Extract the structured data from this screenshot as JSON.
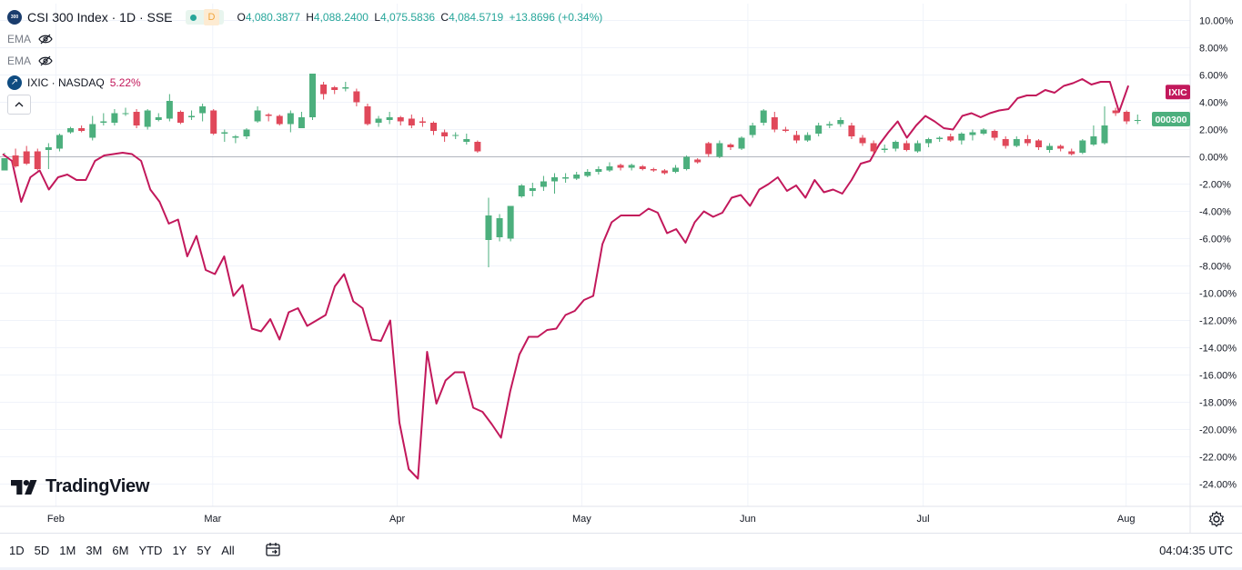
{
  "header": {
    "symbol_logo_text": "300",
    "title": "CSI 300 Index · 1D · SSE",
    "market_badge": "D",
    "ohlc": {
      "o_label": "O",
      "o": "4,080.3877",
      "h_label": "H",
      "h": "4,088.2400",
      "l_label": "L",
      "l": "4,075.5836",
      "c_label": "C",
      "c": "4,084.5719",
      "change": "+13.8696 (+0.34%)"
    }
  },
  "indicators": [
    {
      "name": "EMA",
      "icon": "eye-slash-icon"
    },
    {
      "name": "EMA",
      "icon": "eye-slash-icon"
    }
  ],
  "compare": {
    "name": "IXIC · NASDAQ",
    "value": "5.22%",
    "icon": "ixic-logo-icon"
  },
  "collapse_icon": "chevron-up-icon",
  "branding": {
    "name": "TradingView"
  },
  "bottombar": {
    "ranges": [
      "1D",
      "5D",
      "1M",
      "3M",
      "6M",
      "YTD",
      "1Y",
      "5Y",
      "All"
    ],
    "time": "04:04:35 UTC",
    "calendar_icon": "calendar-range-icon"
  },
  "colors": {
    "up": "#26a69a",
    "up_bar": "#4caf7d",
    "down": "#e0485a",
    "compare": "#c2185b",
    "grid": "#f0f3fa"
  },
  "chart_data": {
    "type": "line",
    "mode": "percent",
    "yticks": [
      "10.00%",
      "8.00%",
      "6.00%",
      "4.00%",
      "2.00%",
      "0.00%",
      "-2.00%",
      "-4.00%",
      "-6.00%",
      "-8.00%",
      "-10.00%",
      "-12.00%",
      "-14.00%",
      "-16.00%",
      "-18.00%",
      "-20.00%",
      "-22.00%",
      "-24.00%"
    ],
    "ylim": [
      -25,
      11
    ],
    "xtick_labels": [
      {
        "label": "Feb",
        "index": 3
      },
      {
        "label": "Mar",
        "index": 20
      },
      {
        "label": "Apr",
        "index": 40
      },
      {
        "label": "May",
        "index": 60
      },
      {
        "label": "Jun",
        "index": 78
      },
      {
        "label": "Jul",
        "index": 97
      },
      {
        "label": "Aug",
        "index": 119
      }
    ],
    "n_slots": 126,
    "series": [
      {
        "name": "000300",
        "kind": "candlestick",
        "last_label": "000300",
        "candles": [
          [
            0,
            -1.0,
            -0.1,
            0.3,
            0.2
          ],
          [
            1,
            0.1,
            -0.7,
            -0.8,
            0.6
          ],
          [
            2,
            0.4,
            -0.5,
            -0.6,
            0.8
          ],
          [
            3,
            0.4,
            -0.9,
            -1.0,
            0.6
          ],
          [
            4,
            0.5,
            0.7,
            1.0,
            -0.9
          ],
          [
            5,
            0.6,
            1.6,
            1.7,
            0.4
          ],
          [
            6,
            1.8,
            2.1,
            2.2,
            1.7
          ],
          [
            7,
            2.1,
            1.9,
            2.3,
            1.8
          ],
          [
            8,
            1.4,
            2.4,
            3.0,
            1.2
          ],
          [
            9,
            2.5,
            2.6,
            3.2,
            2.3
          ],
          [
            10,
            2.5,
            3.2,
            3.5,
            2.3
          ],
          [
            11,
            3.2,
            3.2,
            3.6,
            3.0
          ],
          [
            12,
            3.3,
            2.3,
            3.5,
            2.1
          ],
          [
            13,
            2.2,
            3.4,
            3.5,
            2.0
          ],
          [
            14,
            2.7,
            2.9,
            3.2,
            2.6
          ],
          [
            15,
            2.8,
            4.1,
            4.6,
            2.6
          ],
          [
            16,
            3.3,
            2.5,
            3.4,
            2.4
          ],
          [
            17,
            2.9,
            3.0,
            3.4,
            2.7
          ],
          [
            18,
            3.2,
            3.7,
            3.9,
            2.6
          ],
          [
            19,
            3.4,
            1.7,
            3.5,
            1.6
          ],
          [
            20,
            1.7,
            1.8,
            2.0,
            1.1
          ],
          [
            21,
            1.4,
            1.5,
            1.6,
            1.0
          ],
          [
            22,
            1.5,
            2.0,
            2.1,
            1.3
          ],
          [
            23,
            2.6,
            3.4,
            3.7,
            2.5
          ],
          [
            24,
            3.1,
            3.0,
            3.2,
            2.6
          ],
          [
            25,
            3.0,
            2.4,
            3.1,
            2.3
          ],
          [
            26,
            2.4,
            3.2,
            3.4,
            1.8
          ],
          [
            27,
            2.1,
            2.9,
            3.3,
            2.1
          ],
          [
            28,
            2.9,
            6.1,
            6.1,
            2.7
          ],
          [
            29,
            5.3,
            4.6,
            5.5,
            4.2
          ],
          [
            30,
            5.1,
            4.9,
            5.2,
            4.6
          ],
          [
            31,
            5.0,
            5.1,
            5.5,
            4.8
          ],
          [
            32,
            4.8,
            4.0,
            5.0,
            3.7
          ],
          [
            33,
            3.7,
            2.4,
            3.9,
            2.3
          ],
          [
            34,
            2.5,
            2.8,
            3.0,
            2.2
          ],
          [
            35,
            2.7,
            2.9,
            3.3,
            2.4
          ],
          [
            36,
            2.9,
            2.6,
            3.0,
            2.3
          ],
          [
            37,
            2.8,
            2.3,
            3.1,
            2.1
          ],
          [
            38,
            2.6,
            2.5,
            2.9,
            2.2
          ],
          [
            39,
            2.5,
            1.9,
            2.6,
            1.6
          ],
          [
            40,
            1.8,
            1.5,
            2.0,
            1.1
          ],
          [
            41,
            1.6,
            1.6,
            1.8,
            1.3
          ],
          [
            42,
            1.1,
            1.3,
            1.7,
            0.9
          ],
          [
            43,
            1.1,
            0.4,
            1.2,
            0.3
          ],
          [
            44,
            -6.1,
            -4.3,
            -3.0,
            -8.1
          ],
          [
            45,
            -5.9,
            -4.5,
            -4.2,
            -6.2
          ],
          [
            46,
            -6.0,
            -3.6,
            -3.6,
            -6.2
          ],
          [
            47,
            -2.9,
            -2.1,
            -2.0,
            -3.0
          ],
          [
            48,
            -2.5,
            -2.3,
            -1.9,
            -2.9
          ],
          [
            49,
            -2.2,
            -1.8,
            -1.4,
            -2.5
          ],
          [
            50,
            -1.8,
            -1.5,
            -1.2,
            -2.7
          ],
          [
            51,
            -1.6,
            -1.5,
            -1.2,
            -1.9
          ],
          [
            52,
            -1.6,
            -1.3,
            -1.1,
            -1.7
          ],
          [
            53,
            -1.4,
            -1.1,
            -0.9,
            -1.5
          ],
          [
            54,
            -1.1,
            -0.9,
            -0.7,
            -1.3
          ],
          [
            55,
            -1.0,
            -0.7,
            -0.4,
            -1.1
          ],
          [
            56,
            -0.6,
            -0.8,
            -0.5,
            -1.0
          ],
          [
            57,
            -0.8,
            -0.6,
            -0.5,
            -1.0
          ],
          [
            58,
            -0.7,
            -0.9,
            -0.6,
            -1.0
          ],
          [
            59,
            -0.9,
            -1.0,
            -0.8,
            -1.1
          ],
          [
            60,
            -1.0,
            -1.2,
            -0.9,
            -1.3
          ],
          [
            61,
            -1.1,
            -0.8,
            -0.6,
            -1.2
          ],
          [
            62,
            -0.9,
            0.0,
            0.1,
            -1.0
          ],
          [
            63,
            -0.2,
            -0.4,
            -0.1,
            -0.5
          ],
          [
            64,
            1.0,
            0.2,
            1.1,
            0.0
          ],
          [
            65,
            0.0,
            1.0,
            1.2,
            -0.1
          ],
          [
            66,
            0.9,
            0.7,
            1.0,
            0.5
          ],
          [
            67,
            0.6,
            1.4,
            1.5,
            0.5
          ],
          [
            68,
            1.6,
            2.3,
            2.5,
            1.4
          ],
          [
            69,
            2.5,
            3.4,
            3.5,
            2.3
          ],
          [
            70,
            2.9,
            2.0,
            3.3,
            1.8
          ],
          [
            71,
            2.0,
            1.9,
            2.2,
            1.8
          ],
          [
            72,
            1.6,
            1.2,
            1.9,
            1.0
          ],
          [
            73,
            1.2,
            1.6,
            1.8,
            1.1
          ],
          [
            74,
            1.7,
            2.3,
            2.5,
            1.5
          ],
          [
            75,
            2.3,
            2.4,
            2.6,
            2.1
          ],
          [
            76,
            2.4,
            2.7,
            2.9,
            2.2
          ],
          [
            77,
            2.3,
            1.5,
            2.5,
            1.3
          ],
          [
            78,
            1.4,
            1.0,
            1.6,
            0.8
          ],
          [
            79,
            1.0,
            0.4,
            1.2,
            0.2
          ],
          [
            80,
            0.5,
            0.6,
            0.9,
            0.3
          ],
          [
            81,
            0.6,
            1.1,
            1.2,
            0.4
          ],
          [
            82,
            1.0,
            0.5,
            1.2,
            0.4
          ],
          [
            83,
            0.4,
            1.0,
            1.2,
            0.3
          ],
          [
            84,
            1.0,
            1.3,
            1.4,
            0.7
          ],
          [
            85,
            1.3,
            1.4,
            1.5,
            1.1
          ],
          [
            86,
            1.5,
            1.2,
            1.7,
            1.1
          ],
          [
            87,
            1.2,
            1.7,
            1.8,
            0.9
          ],
          [
            88,
            1.6,
            1.8,
            2.0,
            1.2
          ],
          [
            89,
            1.7,
            2.0,
            2.1,
            1.6
          ],
          [
            90,
            1.9,
            1.4,
            2.0,
            1.2
          ],
          [
            91,
            1.3,
            0.8,
            1.5,
            0.6
          ],
          [
            92,
            0.8,
            1.3,
            1.5,
            0.7
          ],
          [
            93,
            1.3,
            1.0,
            1.6,
            0.8
          ],
          [
            94,
            1.2,
            0.7,
            1.3,
            0.5
          ],
          [
            95,
            0.5,
            0.8,
            1.0,
            0.3
          ],
          [
            96,
            0.8,
            0.6,
            0.9,
            0.4
          ],
          [
            97,
            0.4,
            0.2,
            0.6,
            0.1
          ],
          [
            98,
            0.3,
            1.2,
            1.3,
            0.2
          ],
          [
            99,
            0.9,
            1.5,
            2.3,
            0.8
          ],
          [
            100,
            1.0,
            2.3,
            3.7,
            0.9
          ],
          [
            101,
            3.4,
            3.2,
            3.6,
            3.0
          ],
          [
            102,
            3.3,
            2.6,
            3.4,
            2.4
          ],
          [
            103,
            2.7,
            2.7,
            3.1,
            2.4
          ]
        ]
      },
      {
        "name": "IXIC",
        "kind": "line",
        "last_label": "IXIC",
        "values": [
          0.2,
          -0.3,
          -3.3,
          -1.5,
          -1.0,
          -2.4,
          -1.5,
          -1.3,
          -1.7,
          -1.7,
          -0.3,
          0.1,
          0.2,
          0.3,
          0.2,
          -0.3,
          -2.4,
          -3.3,
          -4.9,
          -4.6,
          -7.3,
          -5.8,
          -8.3,
          -8.6,
          -7.3,
          -10.2,
          -9.4,
          -12.6,
          -12.8,
          -11.9,
          -13.4,
          -11.4,
          -11.1,
          -12.4,
          -12.0,
          -11.6,
          -9.5,
          -8.6,
          -10.6,
          -11.1,
          -13.4,
          -13.5,
          -12.0,
          -19.5,
          -22.9,
          -23.6,
          -14.3,
          -18.1,
          -16.4,
          -15.8,
          -15.8,
          -18.4,
          -18.7,
          -19.6,
          -20.6,
          -17.2,
          -14.5,
          -13.2,
          -13.2,
          -12.7,
          -12.6,
          -11.6,
          -11.3,
          -10.5,
          -10.2,
          -6.4,
          -4.8,
          -4.3,
          -4.3,
          -4.3,
          -3.8,
          -4.1,
          -5.6,
          -5.3,
          -6.3,
          -4.8,
          -4.0,
          -4.4,
          -4.1,
          -3.0,
          -2.8,
          -3.6,
          -2.4,
          -2.0,
          -1.5,
          -2.5,
          -2.1,
          -3.0,
          -1.7,
          -2.6,
          -2.4,
          -2.7,
          -1.7,
          -0.5,
          -0.3,
          0.9,
          1.8,
          2.6,
          1.4,
          2.3,
          3.0,
          2.6,
          2.1,
          2.0,
          3.0,
          3.2,
          2.9,
          3.2,
          3.4,
          3.5,
          4.3,
          4.5,
          4.5,
          4.9,
          4.7,
          5.2,
          5.4,
          5.7,
          5.3,
          5.5,
          5.5,
          3.3,
          5.22
        ]
      }
    ]
  }
}
